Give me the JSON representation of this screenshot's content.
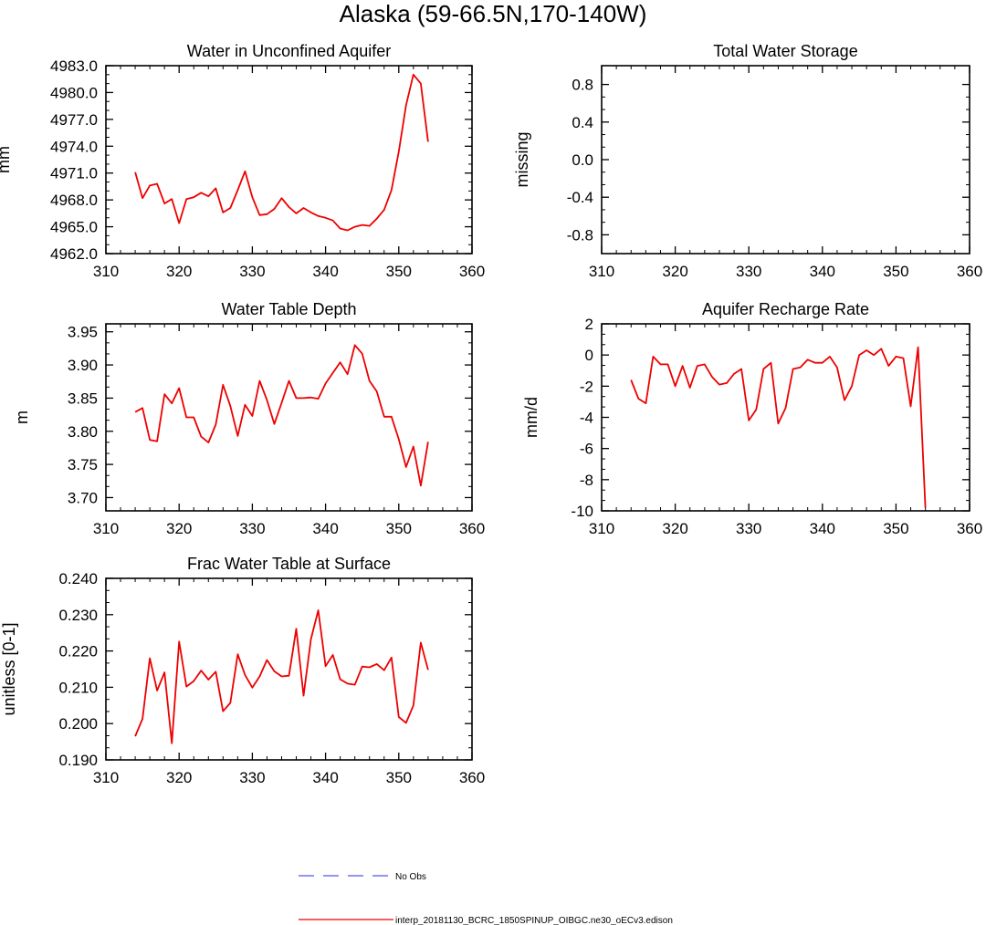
{
  "figure_title": "Alaska (59-66.5N,170-140W)",
  "legend": {
    "obs_label": "No Obs",
    "obs_color": "#5555ee",
    "model_label": "interp_20181130_BCRC_1850SPINUP_OIBGC.ne30_oECv3.edison",
    "model_color": "#ee0000"
  },
  "chart_data": [
    {
      "type": "line",
      "title": "Water in Unconfined Aquifer",
      "xlabel": "",
      "ylabel": "mm",
      "xlim": [
        310,
        360
      ],
      "ylim": [
        4962.0,
        4983.0
      ],
      "x_ticks": [
        310,
        320,
        330,
        340,
        350,
        360
      ],
      "y_ticks": [
        4962.0,
        4965.0,
        4968.0,
        4971.0,
        4974.0,
        4977.0,
        4980.0,
        4983.0
      ],
      "y_tick_labels": [
        "4962.0",
        "4965.0",
        "4968.0",
        "4971.0",
        "4974.0",
        "4977.0",
        "4980.0",
        "4983.0"
      ],
      "series": [
        {
          "name": "interp_20181130_BCRC_1850SPINUP_OIBGC.ne30_oECv3.edison",
          "x": [
            314,
            315,
            316,
            317,
            318,
            319,
            320,
            321,
            322,
            323,
            324,
            325,
            326,
            327,
            328,
            329,
            330,
            331,
            332,
            333,
            334,
            335,
            336,
            337,
            338,
            339,
            340,
            341,
            342,
            343,
            344,
            345,
            346,
            347,
            348,
            349,
            350,
            351,
            352,
            353,
            354
          ],
          "values": [
            4971.1,
            4968.2,
            4969.6,
            4969.8,
            4967.6,
            4968.1,
            4965.4,
            4968.1,
            4968.3,
            4968.8,
            4968.4,
            4969.3,
            4966.6,
            4967.1,
            4969.1,
            4971.2,
            4968.3,
            4966.3,
            4966.4,
            4967.0,
            4968.2,
            4967.2,
            4966.5,
            4967.1,
            4966.6,
            4966.2,
            4966.0,
            4965.7,
            4964.8,
            4964.6,
            4965.0,
            4965.2,
            4965.1,
            4965.9,
            4966.9,
            4969.1,
            4973.4,
            4978.6,
            4982.0,
            4981.0,
            4974.5
          ]
        }
      ]
    },
    {
      "type": "line",
      "title": "Total Water Storage",
      "xlabel": "",
      "ylabel": "missing",
      "xlim": [
        310,
        360
      ],
      "ylim": [
        -1.0,
        1.0
      ],
      "x_ticks": [
        310,
        320,
        330,
        340,
        350,
        360
      ],
      "y_ticks": [
        -0.8,
        -0.4,
        0.0,
        0.4,
        0.8
      ],
      "y_tick_labels": [
        "-0.8",
        "-0.4",
        "0.0",
        "0.4",
        "0.8"
      ],
      "series": []
    },
    {
      "type": "line",
      "title": "Water Table Depth",
      "xlabel": "",
      "ylabel": "m",
      "xlim": [
        310,
        360
      ],
      "ylim": [
        3.68,
        3.962
      ],
      "x_ticks": [
        310,
        320,
        330,
        340,
        350,
        360
      ],
      "y_ticks": [
        3.7,
        3.75,
        3.8,
        3.85,
        3.9,
        3.95
      ],
      "y_tick_labels": [
        "3.70",
        "3.75",
        "3.80",
        "3.85",
        "3.90",
        "3.95"
      ],
      "series": [
        {
          "name": "interp_20181130_BCRC_1850SPINUP_OIBGC.ne30_oECv3.edison",
          "x": [
            314,
            315,
            316,
            317,
            318,
            319,
            320,
            321,
            322,
            323,
            324,
            325,
            326,
            327,
            328,
            329,
            330,
            331,
            332,
            333,
            334,
            335,
            336,
            337,
            338,
            339,
            340,
            341,
            342,
            343,
            344,
            345,
            346,
            347,
            348,
            349,
            350,
            351,
            352,
            353,
            354
          ],
          "values": [
            3.829,
            3.835,
            3.787,
            3.785,
            3.856,
            3.842,
            3.865,
            3.821,
            3.821,
            3.792,
            3.783,
            3.81,
            3.87,
            3.838,
            3.793,
            3.84,
            3.823,
            3.876,
            3.847,
            3.811,
            3.843,
            3.876,
            3.85,
            3.85,
            3.851,
            3.849,
            3.872,
            3.888,
            3.904,
            3.886,
            3.93,
            3.917,
            3.876,
            3.86,
            3.822,
            3.822,
            3.788,
            3.746,
            3.777,
            3.718,
            3.784
          ]
        }
      ]
    },
    {
      "type": "line",
      "title": "Aquifer Recharge Rate",
      "xlabel": "",
      "ylabel": "mm/d",
      "xlim": [
        310,
        360
      ],
      "ylim": [
        -10,
        2
      ],
      "x_ticks": [
        310,
        320,
        330,
        340,
        350,
        360
      ],
      "y_ticks": [
        -10,
        -8,
        -6,
        -4,
        -2,
        0,
        2
      ],
      "y_tick_labels": [
        "-10",
        "-8",
        "-6",
        "-4",
        "-2",
        "0",
        "2"
      ],
      "series": [
        {
          "name": "interp_20181130_BCRC_1850SPINUP_OIBGC.ne30_oECv3.edison",
          "x": [
            314,
            315,
            316,
            317,
            318,
            319,
            320,
            321,
            322,
            323,
            324,
            325,
            326,
            327,
            328,
            329,
            330,
            331,
            332,
            333,
            334,
            335,
            336,
            337,
            338,
            339,
            340,
            341,
            342,
            343,
            344,
            345,
            346,
            347,
            348,
            349,
            350,
            351,
            352,
            353,
            354
          ],
          "values": [
            -1.6,
            -2.8,
            -3.1,
            -0.1,
            -0.6,
            -0.6,
            -2.0,
            -0.7,
            -2.1,
            -0.7,
            -0.6,
            -1.4,
            -1.9,
            -1.8,
            -1.2,
            -0.9,
            -4.2,
            -3.5,
            -0.9,
            -0.5,
            -4.4,
            -3.4,
            -0.9,
            -0.8,
            -0.3,
            -0.5,
            -0.5,
            -0.1,
            -0.8,
            -2.9,
            -2.0,
            0.0,
            0.3,
            0.0,
            0.4,
            -0.7,
            -0.1,
            -0.2,
            -3.3,
            0.5,
            -9.8
          ]
        }
      ]
    },
    {
      "type": "line",
      "title": "Frac Water Table at Surface",
      "xlabel": "",
      "ylabel": "unitless [0-1]",
      "xlim": [
        310,
        360
      ],
      "ylim": [
        0.19,
        0.24
      ],
      "x_ticks": [
        310,
        320,
        330,
        340,
        350,
        360
      ],
      "y_ticks": [
        0.19,
        0.2,
        0.21,
        0.22,
        0.23,
        0.24
      ],
      "y_tick_labels": [
        "0.190",
        "0.200",
        "0.210",
        "0.220",
        "0.230",
        "0.240"
      ],
      "series": [
        {
          "name": "interp_20181130_BCRC_1850SPINUP_OIBGC.ne30_oECv3.edison",
          "x": [
            314,
            315,
            316,
            317,
            318,
            319,
            320,
            321,
            322,
            323,
            324,
            325,
            326,
            327,
            328,
            329,
            330,
            331,
            332,
            333,
            334,
            335,
            336,
            337,
            338,
            339,
            340,
            341,
            342,
            343,
            344,
            345,
            346,
            347,
            348,
            349,
            350,
            351,
            352,
            353,
            354
          ],
          "values": [
            0.1965,
            0.2013,
            0.218,
            0.2091,
            0.2141,
            0.1946,
            0.2226,
            0.2102,
            0.2117,
            0.2146,
            0.2121,
            0.2143,
            0.2034,
            0.2057,
            0.2191,
            0.2134,
            0.2099,
            0.213,
            0.2175,
            0.2144,
            0.213,
            0.2132,
            0.2261,
            0.2077,
            0.2233,
            0.2312,
            0.2158,
            0.2189,
            0.2122,
            0.211,
            0.2107,
            0.2157,
            0.2155,
            0.2164,
            0.2147,
            0.2182,
            0.2018,
            0.2002,
            0.205,
            0.2223,
            0.2148
          ]
        }
      ]
    }
  ]
}
